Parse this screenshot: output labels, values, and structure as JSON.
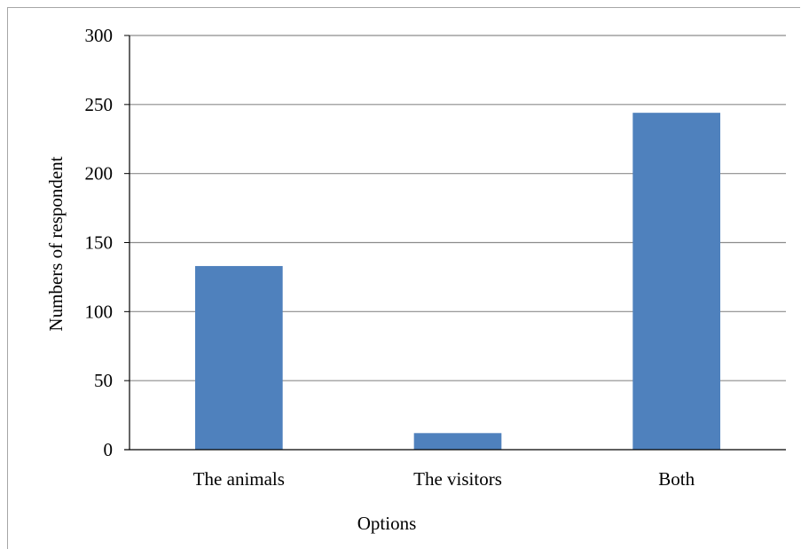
{
  "chart_data": {
    "type": "bar",
    "title": "",
    "xlabel": "Options",
    "ylabel": "Numbers of respondent",
    "categories": [
      "The animals",
      "The visitors",
      "Both"
    ],
    "values": [
      133,
      12,
      244
    ],
    "ylim": [
      0,
      300
    ],
    "yticks": [
      0,
      50,
      100,
      150,
      200,
      250,
      300
    ],
    "grid": true,
    "legend": "none",
    "bar_color": "#4f81bd",
    "grid_color": "#8c8c8c"
  }
}
